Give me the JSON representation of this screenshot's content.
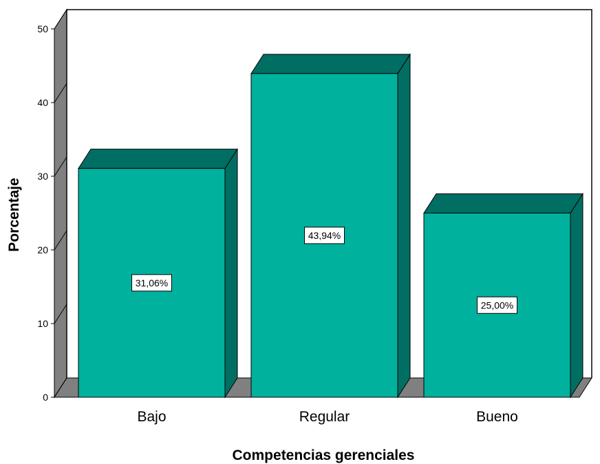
{
  "chart_data": {
    "type": "bar",
    "categories": [
      "Bajo",
      "Regular",
      "Bueno"
    ],
    "values": [
      31.06,
      43.94,
      25.0
    ],
    "data_labels": [
      "31,06%",
      "43,94%",
      "25,00%"
    ],
    "xlabel": "Competencias gerenciales",
    "ylabel": "Porcentaje",
    "ylim": [
      0,
      50
    ],
    "yticks": [
      0,
      10,
      20,
      30,
      40,
      50
    ],
    "grid": false,
    "three_d": true,
    "colors": {
      "bar_front": "#00b19d",
      "bar_top": "#006e62",
      "bar_side": "#006e62",
      "walls": "#808080",
      "outline": "#000000"
    }
  }
}
